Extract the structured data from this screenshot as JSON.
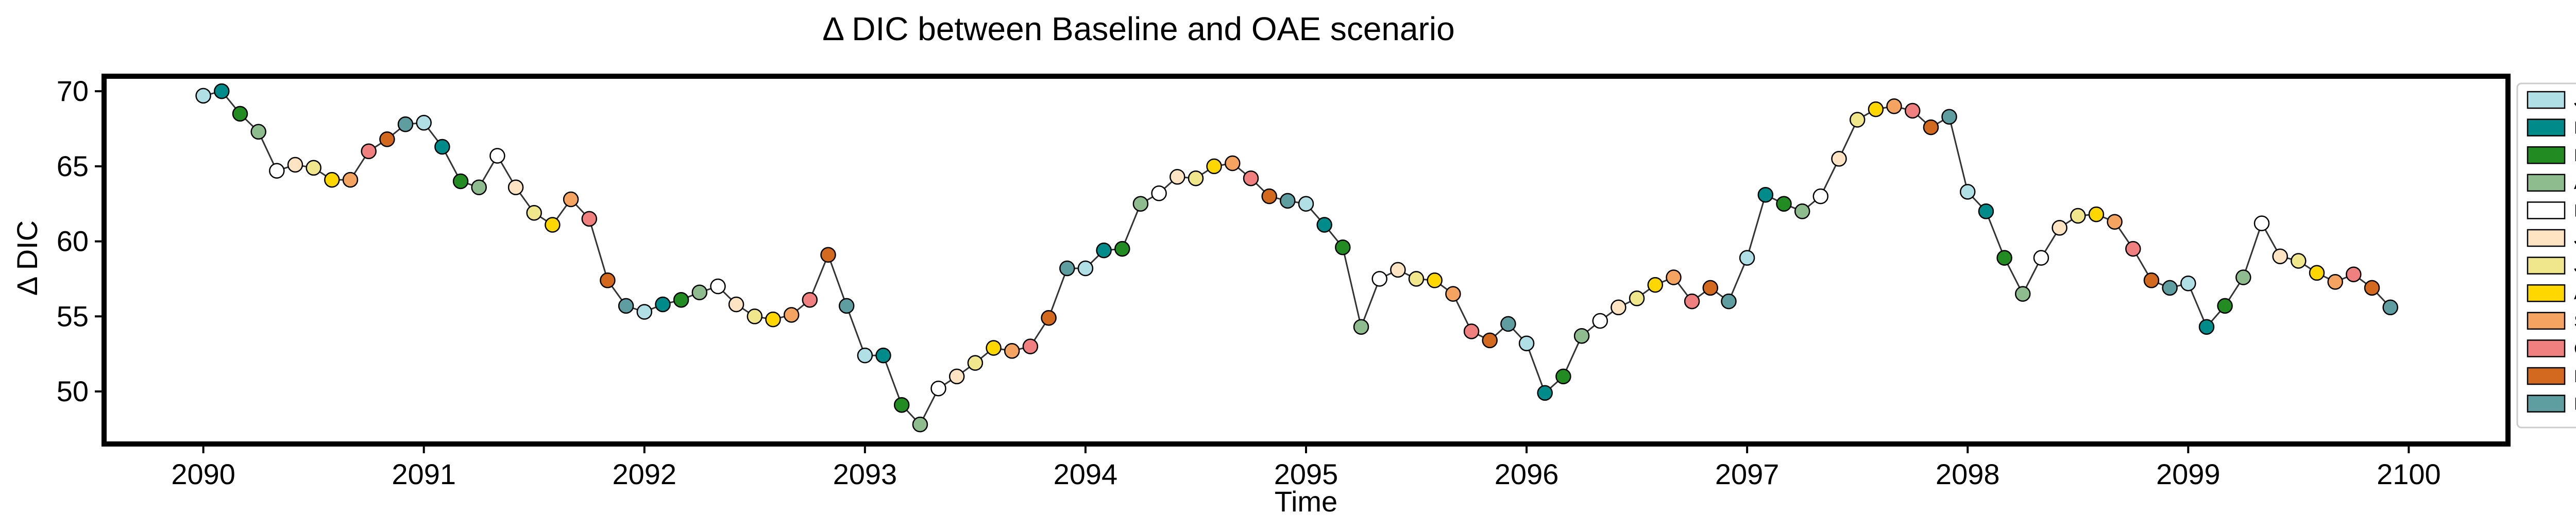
{
  "chart_data": {
    "type": "scatter",
    "title": "Δ DIC between Baseline and OAE scenario",
    "xlabel": "Time",
    "ylabel": "Δ DIC",
    "xlim": [
      2089.55,
      2100.45
    ],
    "ylim": [
      46.5,
      71.0
    ],
    "xticks": [
      2090,
      2091,
      2092,
      2093,
      2094,
      2095,
      2096,
      2097,
      2098,
      2099,
      2100
    ],
    "xtick_labels": [
      "2090",
      "2091",
      "2092",
      "2093",
      "2094",
      "2095",
      "2096",
      "2097",
      "2098",
      "2099",
      "2100"
    ],
    "yticks": [
      50,
      55,
      60,
      65,
      70
    ],
    "ytick_labels": [
      "50",
      "55",
      "60",
      "65",
      "70"
    ],
    "grid": false,
    "legend_position": "right, outside plot",
    "line_color": "#333333",
    "months": [
      "Jan",
      "Feb",
      "Mar",
      "Apr",
      "May",
      "June",
      "July",
      "Aug",
      "Sept",
      "Oct",
      "Nov",
      "Dec"
    ],
    "month_colors": [
      "#b0e0e6",
      "#008b8b",
      "#228b22",
      "#8fbc8f",
      "#ffffff",
      "#ffe4c4",
      "#f0e68c",
      "#ffd700",
      "#f4a460",
      "#f08080",
      "#d2691e",
      "#5f9ea0"
    ],
    "values": [
      69.7,
      70.0,
      68.5,
      67.3,
      64.7,
      65.1,
      64.9,
      64.1,
      64.1,
      66.0,
      66.8,
      67.8,
      67.9,
      66.3,
      64.0,
      63.6,
      65.7,
      63.6,
      61.9,
      61.1,
      62.8,
      61.5,
      57.4,
      55.7,
      55.3,
      55.8,
      56.1,
      56.6,
      57.0,
      55.8,
      55.0,
      54.8,
      55.1,
      56.1,
      59.1,
      55.7,
      52.4,
      52.4,
      49.1,
      47.8,
      50.2,
      51.0,
      51.9,
      52.9,
      52.7,
      53.0,
      54.9,
      58.2,
      58.2,
      59.4,
      59.5,
      62.5,
      63.2,
      64.3,
      64.2,
      65.0,
      65.2,
      64.2,
      63.0,
      62.7,
      62.5,
      61.1,
      59.6,
      54.3,
      57.5,
      58.1,
      57.5,
      57.4,
      56.5,
      54.0,
      53.4,
      54.5,
      53.2,
      49.9,
      51.0,
      53.7,
      54.7,
      55.6,
      56.2,
      57.1,
      57.6,
      56.0,
      56.9,
      56.0,
      58.9,
      63.1,
      62.5,
      62.0,
      63.0,
      65.5,
      68.1,
      68.8,
      69.0,
      68.7,
      67.6,
      68.3,
      63.3,
      62.0,
      58.9,
      56.5,
      58.9,
      60.9,
      61.7,
      61.8,
      61.3,
      59.5,
      57.4,
      56.9,
      57.2,
      54.3,
      55.7,
      57.6,
      61.2,
      59.0,
      58.7,
      57.9,
      57.3,
      57.8,
      56.9,
      55.6
    ]
  }
}
